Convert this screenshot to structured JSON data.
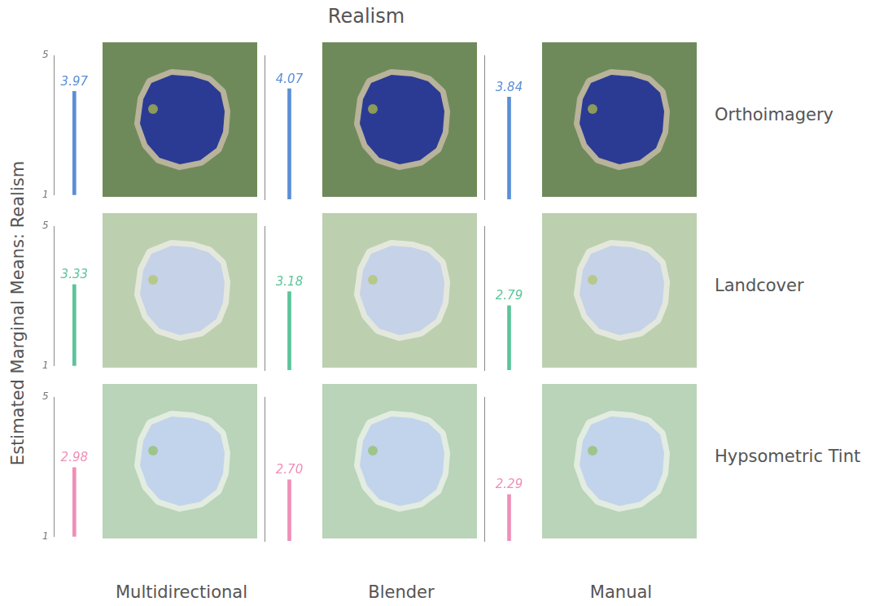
{
  "chart_data": {
    "type": "bar",
    "title": "Realism",
    "y_label": "Estimated Marginal Means: Realism",
    "categories": [
      "Multidirectional",
      "Blender",
      "Manual"
    ],
    "series": [
      {
        "name": "Orthoimagery",
        "color": "#5b8fd6",
        "values": [
          3.97,
          4.07,
          3.84
        ],
        "value_labels": [
          "3.97",
          "4.07",
          "3.84"
        ]
      },
      {
        "name": "Landcover",
        "color": "#5cc49a",
        "values": [
          3.33,
          3.18,
          2.79
        ],
        "value_labels": [
          "3.33",
          "3.18",
          "2.79"
        ]
      },
      {
        "name": "Hypsometric Tint",
        "color": "#ef8fb7",
        "values": [
          2.98,
          2.7,
          2.29
        ],
        "value_labels": [
          "2.98",
          "2.70",
          "2.29"
        ]
      }
    ],
    "ylim": [
      1,
      5
    ],
    "yticks": [
      1,
      5
    ],
    "data_labels": true,
    "grid": false
  }
}
